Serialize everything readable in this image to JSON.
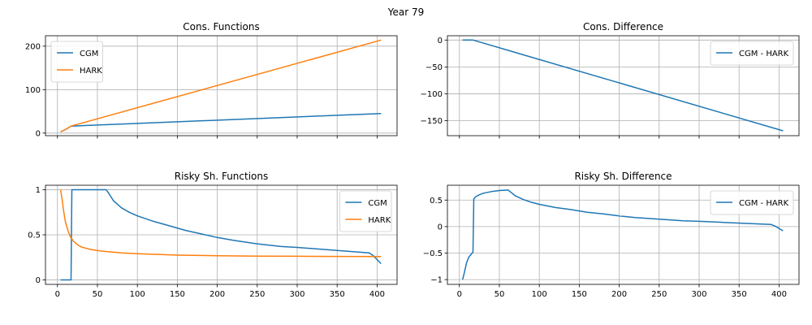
{
  "figure": {
    "suptitle": "Year 79",
    "colors": {
      "blue": "#1f77b4",
      "orange": "#ff7f0e",
      "grid": "#b0b0b0"
    }
  },
  "chart_data": [
    {
      "type": "line",
      "title": "Cons. Functions",
      "xlabel": "",
      "ylabel": "",
      "xlim": [
        -15,
        425
      ],
      "ylim": [
        -6,
        224
      ],
      "grid": true,
      "show_x_ticklabels": false,
      "xticks": [
        0,
        50,
        100,
        150,
        200,
        250,
        300,
        350,
        400
      ],
      "yticks": [
        0,
        100,
        200
      ],
      "legend": {
        "placement": "top-left",
        "entries": [
          "CGM",
          "HARK"
        ]
      },
      "series": [
        {
          "name": "CGM",
          "color": "#1f77b4",
          "x": [
            4,
            10,
            17,
            405
          ],
          "y": [
            3,
            8,
            16,
            45
          ]
        },
        {
          "name": "HARK",
          "color": "#ff7f0e",
          "x": [
            4,
            10,
            17,
            405
          ],
          "y": [
            3,
            8,
            16,
            214
          ]
        }
      ]
    },
    {
      "type": "line",
      "title": "Cons. Difference",
      "xlabel": "",
      "ylabel": "",
      "xlim": [
        -15,
        425
      ],
      "ylim": [
        -178,
        8
      ],
      "grid": true,
      "show_x_ticklabels": false,
      "xticks": [
        0,
        50,
        100,
        150,
        200,
        250,
        300,
        350,
        400
      ],
      "yticks": [
        0,
        -50,
        -100,
        -150
      ],
      "legend": {
        "placement": "top-right",
        "entries": [
          "CGM - HARK"
        ]
      },
      "series": [
        {
          "name": "CGM - HARK",
          "color": "#1f77b4",
          "x": [
            4,
            17,
            405
          ],
          "y": [
            0,
            0,
            -169
          ]
        }
      ]
    },
    {
      "type": "line",
      "title": "Risky Sh. Functions",
      "xlabel": "",
      "ylabel": "",
      "xlim": [
        -15,
        425
      ],
      "ylim": [
        -0.05,
        1.05
      ],
      "grid": true,
      "show_x_ticklabels": true,
      "xticks": [
        0,
        50,
        100,
        150,
        200,
        250,
        300,
        350,
        400
      ],
      "yticks": [
        0.0,
        0.5,
        1.0
      ],
      "legend": {
        "placement": "top-right",
        "entries": [
          "CGM",
          "HARK"
        ]
      },
      "series": [
        {
          "name": "CGM",
          "color": "#1f77b4",
          "x": [
            4,
            17,
            18,
            61,
            65,
            70,
            80,
            90,
            100,
            120,
            140,
            160,
            180,
            200,
            220,
            250,
            280,
            300,
            330,
            360,
            390,
            395,
            405
          ],
          "y": [
            0.0,
            0.0,
            1.0,
            1.0,
            0.95,
            0.88,
            0.8,
            0.75,
            0.71,
            0.65,
            0.6,
            0.55,
            0.51,
            0.47,
            0.44,
            0.4,
            0.37,
            0.36,
            0.34,
            0.32,
            0.3,
            0.27,
            0.18
          ]
        },
        {
          "name": "HARK",
          "color": "#ff7f0e",
          "x": [
            4,
            6,
            8,
            10,
            13,
            16,
            20,
            25,
            30,
            40,
            50,
            60,
            80,
            100,
            150,
            200,
            250,
            300,
            350,
            405
          ],
          "y": [
            1.0,
            0.88,
            0.75,
            0.64,
            0.55,
            0.48,
            0.43,
            0.39,
            0.365,
            0.34,
            0.325,
            0.315,
            0.3,
            0.29,
            0.275,
            0.268,
            0.264,
            0.262,
            0.26,
            0.258
          ]
        }
      ]
    },
    {
      "type": "line",
      "title": "Risky Sh. Difference",
      "xlabel": "",
      "ylabel": "",
      "xlim": [
        -15,
        425
      ],
      "ylim": [
        -1.09,
        0.78
      ],
      "grid": true,
      "show_x_ticklabels": true,
      "xticks": [
        0,
        50,
        100,
        150,
        200,
        250,
        300,
        350,
        400
      ],
      "yticks": [
        0.5,
        0.0,
        -0.5,
        -1.0
      ],
      "legend": {
        "placement": "top-right",
        "entries": [
          "CGM - HARK"
        ]
      },
      "series": [
        {
          "name": "CGM - HARK",
          "color": "#1f77b4",
          "x": [
            4,
            6,
            9,
            12,
            16,
            17,
            18,
            20,
            25,
            30,
            40,
            50,
            61,
            65,
            70,
            80,
            90,
            100,
            120,
            140,
            160,
            180,
            200,
            220,
            250,
            280,
            300,
            330,
            360,
            390,
            395,
            405
          ],
          "y": [
            -1.0,
            -0.88,
            -0.68,
            -0.57,
            -0.5,
            -0.48,
            0.52,
            0.56,
            0.6,
            0.63,
            0.66,
            0.68,
            0.69,
            0.64,
            0.58,
            0.51,
            0.46,
            0.42,
            0.36,
            0.32,
            0.27,
            0.24,
            0.2,
            0.17,
            0.14,
            0.11,
            0.1,
            0.08,
            0.06,
            0.04,
            0.01,
            -0.08
          ]
        }
      ]
    }
  ]
}
